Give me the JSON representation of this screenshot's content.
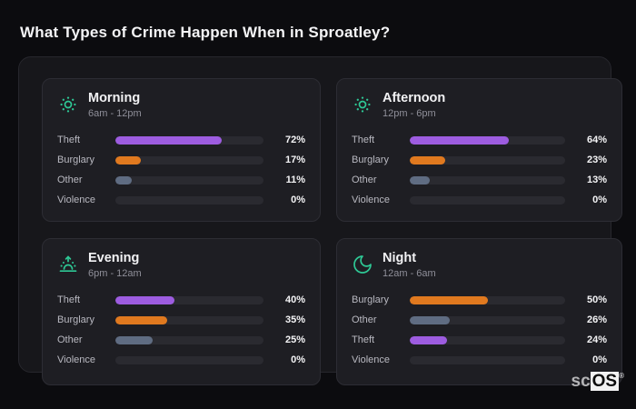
{
  "watermark": {
    "text_light": "sc",
    "text_boxed": "OS",
    "registered_mark": "®"
  },
  "colors": {
    "theft": "#9d5ce0",
    "burglary": "#e0791f",
    "other": "#5f6c82",
    "violence": "#8a8a92",
    "icon_accent": "#2ec895",
    "bar_track": "#2a2a30",
    "card_background": "#1e1e23",
    "panel_background": "#17171b",
    "page_background": "#0c0c0f"
  },
  "chart_data": {
    "type": "bar",
    "orientation": "horizontal",
    "title": "What Types of Crime Happen When in Sproatley?",
    "unit": "%",
    "xlim": [
      0,
      100
    ],
    "legend": false,
    "groups": [
      {
        "id": "morning",
        "name": "Morning",
        "time_range": "6am - 12pm",
        "icon": "sun-icon",
        "bars": [
          {
            "label": "Theft",
            "value": 72,
            "color_key": "theft"
          },
          {
            "label": "Burglary",
            "value": 17,
            "color_key": "burglary"
          },
          {
            "label": "Other",
            "value": 11,
            "color_key": "other"
          },
          {
            "label": "Violence",
            "value": 0,
            "color_key": "violence"
          }
        ]
      },
      {
        "id": "afternoon",
        "name": "Afternoon",
        "time_range": "12pm - 6pm",
        "icon": "sun-icon",
        "bars": [
          {
            "label": "Theft",
            "value": 64,
            "color_key": "theft"
          },
          {
            "label": "Burglary",
            "value": 23,
            "color_key": "burglary"
          },
          {
            "label": "Other",
            "value": 13,
            "color_key": "other"
          },
          {
            "label": "Violence",
            "value": 0,
            "color_key": "violence"
          }
        ]
      },
      {
        "id": "evening",
        "name": "Evening",
        "time_range": "6pm - 12am",
        "icon": "sunrise-icon",
        "bars": [
          {
            "label": "Theft",
            "value": 40,
            "color_key": "theft"
          },
          {
            "label": "Burglary",
            "value": 35,
            "color_key": "burglary"
          },
          {
            "label": "Other",
            "value": 25,
            "color_key": "other"
          },
          {
            "label": "Violence",
            "value": 0,
            "color_key": "violence"
          }
        ]
      },
      {
        "id": "night",
        "name": "Night",
        "time_range": "12am - 6am",
        "icon": "moon-icon",
        "bars": [
          {
            "label": "Burglary",
            "value": 50,
            "color_key": "burglary"
          },
          {
            "label": "Other",
            "value": 26,
            "color_key": "other"
          },
          {
            "label": "Theft",
            "value": 24,
            "color_key": "theft"
          },
          {
            "label": "Violence",
            "value": 0,
            "color_key": "violence"
          }
        ]
      }
    ]
  }
}
